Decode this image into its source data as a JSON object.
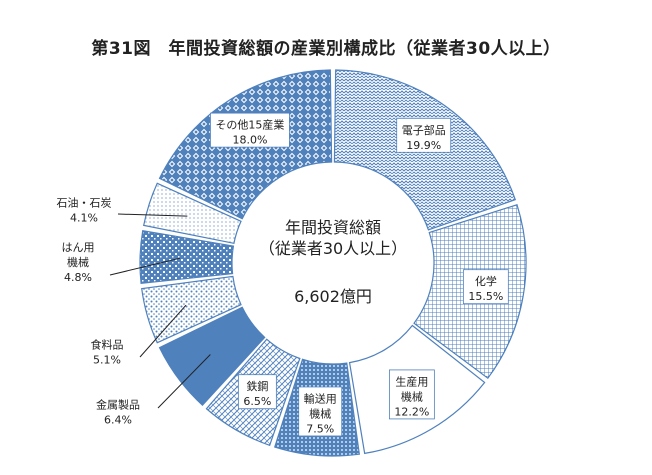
{
  "title": "第31図　年間投資総額の産業別構成比（従業者30人以上）",
  "center": {
    "line1": "年間投資総額",
    "line2": "（従業者30人以上）",
    "total": "6,602億円"
  },
  "chart_data": {
    "type": "pie",
    "donut": true,
    "title": "第31図　年間投資総額の産業別構成比（従業者30人以上）",
    "unit": "%",
    "categories": [
      "電子部品",
      "化学",
      "生産用機械",
      "輸送用機械",
      "鉄鋼",
      "金属製品",
      "食料品",
      "はん用機械",
      "石油・石炭",
      "その他15産業"
    ],
    "values": [
      19.9,
      15.5,
      12.2,
      7.5,
      6.5,
      6.4,
      5.1,
      4.8,
      4.1,
      18.0
    ],
    "value_labels": [
      "19.9%",
      "15.5%",
      "12.2%",
      "7.5%",
      "6.5%",
      "6.4%",
      "5.1%",
      "4.8%",
      "4.1%",
      "18.0%"
    ],
    "label_lines": [
      [
        "電子部品"
      ],
      [
        "化学"
      ],
      [
        "生産用",
        "機械"
      ],
      [
        "輸送用",
        "機械"
      ],
      [
        "鉄鋼"
      ],
      [
        "金属製品"
      ],
      [
        "食料品"
      ],
      [
        "はん用",
        "機械"
      ],
      [
        "石油・石炭"
      ],
      [
        "その他15産業"
      ]
    ],
    "label_outside": [
      false,
      false,
      false,
      false,
      false,
      true,
      true,
      true,
      true,
      false
    ],
    "fill_patterns": [
      "zigzag",
      "grid",
      "white",
      "dots-blue",
      "checker",
      "solid",
      "small-dots",
      "bricks",
      "fine-dots",
      "diamond"
    ],
    "colors": {
      "primary": "#4f81bd",
      "light": "#dce6f2",
      "stroke": "#4f81bd"
    }
  }
}
